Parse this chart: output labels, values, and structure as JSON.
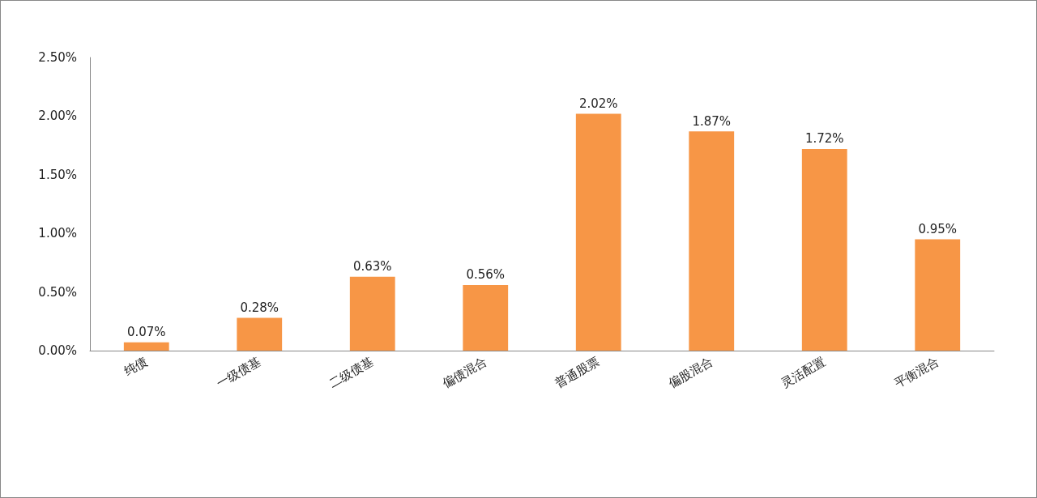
{
  "chart_data": {
    "type": "bar",
    "categories": [
      "纯债",
      "一级债基",
      "二级债基",
      "偏债混合",
      "普通股票",
      "偏股混合",
      "灵活配置",
      "平衡混合"
    ],
    "values": [
      0.07,
      0.28,
      0.63,
      0.56,
      2.02,
      1.87,
      1.72,
      0.95
    ],
    "value_labels": [
      "0.07%",
      "0.28%",
      "0.63%",
      "0.56%",
      "2.02%",
      "1.87%",
      "1.72%",
      "0.95%"
    ],
    "color": "#f79646",
    "ylim": [
      0,
      2.5
    ],
    "yticks": [
      {
        "value": 0,
        "label": "0.00%"
      },
      {
        "value": 0.5,
        "label": "0.50%"
      },
      {
        "value": 1,
        "label": "1.00%"
      },
      {
        "value": 1.5,
        "label": "1.50%"
      },
      {
        "value": 2,
        "label": "2.00%"
      },
      {
        "value": 2.5,
        "label": "2.50%"
      }
    ],
    "grid": false
  }
}
